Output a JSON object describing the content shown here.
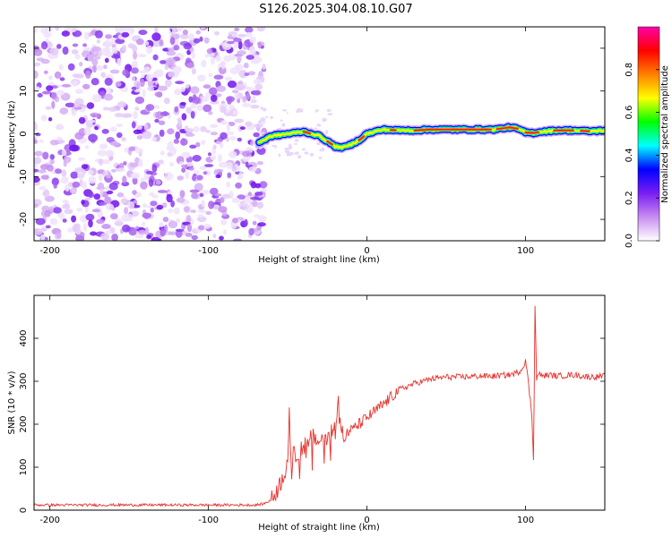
{
  "title": "S126.2025.304.08.10.G07",
  "chart_data": [
    {
      "type": "heatmap",
      "title": "S126.2025.304.08.10.G07",
      "xlabel": "Height of straight line (km)",
      "ylabel": "Frequency (Hz)",
      "xlim": [
        -210,
        150
      ],
      "ylim": [
        -25,
        25
      ],
      "xticks": [
        -200,
        -100,
        0,
        100
      ],
      "yticks": [
        20,
        10,
        0,
        -10,
        -20
      ],
      "noise_region_x": [
        -210,
        -68
      ],
      "ridge": {
        "x": [
          -68,
          -60,
          -50,
          -40,
          -30,
          -20,
          -15,
          -10,
          -5,
          0,
          10,
          20,
          30,
          40,
          60,
          80,
          90,
          95,
          100,
          105,
          110,
          120,
          130,
          140,
          150
        ],
        "freq": [
          -2,
          -0.5,
          0,
          0.5,
          -0.5,
          -3,
          -3.2,
          -2.5,
          -1.5,
          0,
          1,
          0.8,
          0.8,
          1,
          1,
          1,
          1.5,
          1.2,
          0.3,
          0.2,
          0.5,
          0.8,
          0.8,
          0.6,
          0.8
        ]
      },
      "colorbar": {
        "label": "Normalized spectral amplitude",
        "range": [
          0,
          1
        ],
        "ticks": [
          "0.0",
          "0.2",
          "0.4",
          "0.6",
          "0.8"
        ],
        "colors": [
          "#ffffff",
          "#c78cf0",
          "#7a1df2",
          "#0000ff",
          "#00ffff",
          "#00ff00",
          "#ffff00",
          "#ff8000",
          "#ff0000",
          "#ff00aa"
        ]
      }
    },
    {
      "type": "line",
      "xlabel": "Height of straight line (km)",
      "ylabel": "SNR (10 * v/v)",
      "xlim": [
        -210,
        150
      ],
      "ylim": [
        0,
        500
      ],
      "xticks": [
        -200,
        -100,
        0,
        100
      ],
      "yticks": [
        0,
        100,
        200,
        300,
        400
      ],
      "color": "#e8312c",
      "series": [
        {
          "name": "SNR",
          "x": [
            -210,
            -150,
            -100,
            -70,
            -65,
            -60,
            -55,
            -50,
            -49,
            -48,
            -45,
            -40,
            -35,
            -30,
            -25,
            -20,
            -18,
            -15,
            -10,
            -5,
            0,
            10,
            20,
            30,
            40,
            50,
            60,
            70,
            80,
            90,
            95,
            98,
            100,
            102,
            104,
            105,
            106,
            107,
            108,
            110,
            115,
            120,
            130,
            140,
            150
          ],
          "values": [
            12,
            12,
            12,
            12,
            15,
            25,
            60,
            110,
            245,
            120,
            130,
            150,
            170,
            160,
            175,
            190,
            260,
            170,
            185,
            200,
            215,
            245,
            280,
            295,
            305,
            310,
            310,
            312,
            312,
            315,
            320,
            330,
            350,
            290,
            220,
            120,
            480,
            300,
            320,
            312,
            315,
            312,
            315,
            310,
            312
          ]
        }
      ]
    }
  ]
}
